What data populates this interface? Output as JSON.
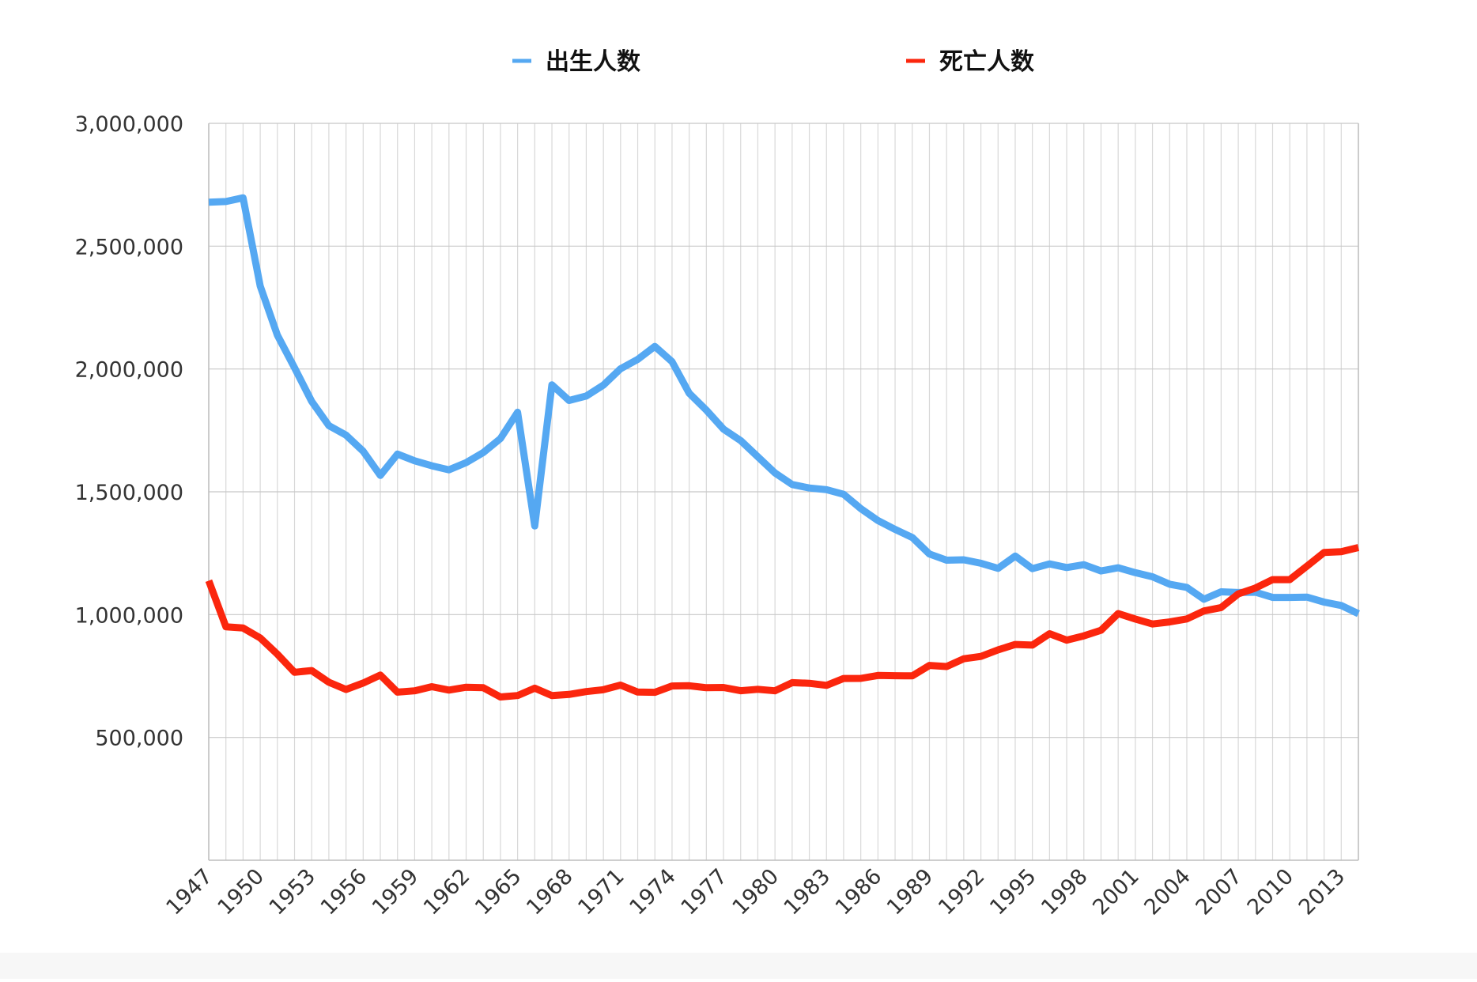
{
  "chart_data": {
    "type": "line",
    "title": "",
    "xlabel": "",
    "ylabel": "",
    "ylim": [
      0,
      3000000
    ],
    "yticks": [
      500000,
      1000000,
      1500000,
      2000000,
      2500000,
      3000000
    ],
    "ytick_labels": [
      "500,000",
      "1,000,000",
      "1,500,000",
      "2,000,000",
      "2,500,000",
      "3,000,000"
    ],
    "xtick_labels": [
      "1947",
      "1950",
      "1953",
      "1956",
      "1959",
      "1962",
      "1965",
      "1968",
      "1971",
      "1974",
      "1977",
      "1980",
      "1983",
      "1986",
      "1989",
      "1992",
      "1995",
      "1998",
      "2001",
      "2004",
      "2007",
      "2010",
      "2013"
    ],
    "grid": true,
    "legend_position": "top",
    "x": [
      1947,
      1948,
      1949,
      1950,
      1951,
      1952,
      1953,
      1954,
      1955,
      1956,
      1957,
      1958,
      1959,
      1960,
      1961,
      1962,
      1963,
      1964,
      1965,
      1966,
      1967,
      1968,
      1969,
      1970,
      1971,
      1972,
      1973,
      1974,
      1975,
      1976,
      1977,
      1978,
      1979,
      1980,
      1981,
      1982,
      1983,
      1984,
      1985,
      1986,
      1987,
      1988,
      1989,
      1990,
      1991,
      1992,
      1993,
      1994,
      1995,
      1996,
      1997,
      1998,
      1999,
      2000,
      2001,
      2002,
      2003,
      2004,
      2005,
      2006,
      2007,
      2008,
      2009,
      2010,
      2011,
      2012,
      2013,
      2014
    ],
    "series": [
      {
        "name": "出生人数",
        "color": "#55a8f2",
        "values": [
          2678792,
          2681624,
          2696638,
          2337507,
          2137689,
          2005162,
          1868040,
          1769580,
          1730692,
          1665278,
          1566713,
          1653469,
          1626088,
          1606041,
          1589372,
          1618616,
          1659521,
          1716761,
          1823697,
          1360974,
          1935647,
          1871839,
          1889815,
          1934239,
          2000973,
          2038682,
          2091983,
          2029989,
          1901440,
          1832617,
          1755100,
          1708643,
          1642580,
          1576889,
          1529455,
          1515392,
          1508687,
          1489780,
          1431577,
          1382946,
          1346658,
          1314006,
          1246802,
          1221585,
          1223245,
          1208989,
          1188282,
          1238328,
          1187064,
          1206555,
          1191665,
          1203147,
          1177669,
          1190547,
          1170662,
          1153855,
          1123610,
          1110721,
          1062530,
          1092674,
          1089818,
          1091156,
          1070035,
          1070035,
          1071304,
          1050806,
          1037231,
          1003539
        ]
      },
      {
        "name": "死亡人数",
        "color": "#fb260d",
        "values": [
          1138238,
          950610,
          945444,
          904876,
          838998,
          765068,
          772230,
          724460,
          695373,
          721491,
          753740,
          684189,
          689959,
          706599,
          692620,
          704291,
          702507,
          664678,
          670342,
          700438,
          670342,
          675006,
          686555,
          694321,
          712962,
          684521,
          683751,
          709416,
          710510,
          702275,
          703270,
          690074,
          695821,
          689664,
          722801,
          720262,
          711883,
          740038,
          740247,
          752283,
          751172,
          750620,
          793014,
          788594,
          820305,
          829797,
          856643,
          878532,
          875933,
          922139,
          896211,
          913402,
          936484,
          1004450,
          982031,
          961653,
          970331,
          982379,
          1014951,
          1028602,
          1084450,
          1108334,
          1142407,
          1142407,
          1197012,
          1253066,
          1256359,
          1273004
        ]
      }
    ]
  }
}
